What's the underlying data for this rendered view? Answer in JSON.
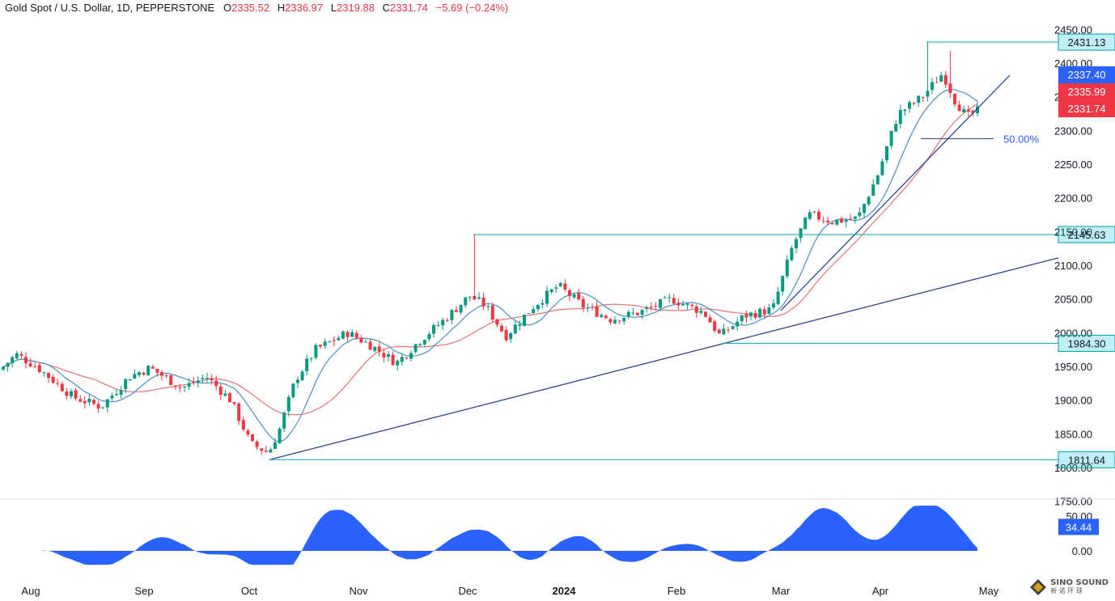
{
  "header": {
    "symbol": "Gold Spot / U.S. Dollar, 1D, PEPPERSTONE",
    "o_label": "O",
    "o_value": "2335.52",
    "h_label": "H",
    "h_value": "2336.97",
    "l_label": "L",
    "l_value": "2319.88",
    "c_label": "C",
    "c_value": "2331.74",
    "change": "−5.69 (−0.24%)"
  },
  "colors": {
    "up": "#089981",
    "down": "#f23645",
    "sma_fast": "#4a90c8",
    "sma_slow": "#e57373",
    "trendline": "#1e3a8a",
    "hline": "#00a0b0",
    "osc": "#2962ff",
    "fib": "#1e3a8a"
  },
  "chart_data": [
    {
      "type": "candlestick",
      "title": "Gold Spot / U.S. Dollar, 1D, PEPPERSTONE",
      "x_ticks": [
        "Aug",
        "Sep",
        "Oct",
        "Nov",
        "Dec",
        "2024",
        "Feb",
        "Mar",
        "Apr",
        "May"
      ],
      "y_ticks": [
        "2450.00",
        "2400.00",
        "2350.00",
        "2300.00",
        "2250.00",
        "2200.00",
        "2150.00",
        "2100.00",
        "2050.00",
        "2000.00",
        "1950.00",
        "1900.00",
        "1850.00",
        "1800.00",
        "1750.00"
      ],
      "ylim": [
        1740,
        2475
      ],
      "ohlc_anchors": [
        {
          "x": 0,
          "c": 1945
        },
        {
          "x": 20,
          "c": 1968
        },
        {
          "x": 45,
          "c": 1950
        },
        {
          "x": 90,
          "c": 1905
        },
        {
          "x": 125,
          "c": 1890
        },
        {
          "x": 160,
          "c": 1935
        },
        {
          "x": 185,
          "c": 1948
        },
        {
          "x": 225,
          "c": 1918
        },
        {
          "x": 255,
          "c": 1935
        },
        {
          "x": 285,
          "c": 1900
        },
        {
          "x": 310,
          "c": 1835
        },
        {
          "x": 332,
          "c": 1822
        },
        {
          "x": 345,
          "c": 1855
        },
        {
          "x": 365,
          "c": 1930
        },
        {
          "x": 390,
          "c": 1975
        },
        {
          "x": 430,
          "c": 2000
        },
        {
          "x": 460,
          "c": 1980
        },
        {
          "x": 490,
          "c": 1955
        },
        {
          "x": 520,
          "c": 1990
        },
        {
          "x": 550,
          "c": 2020
        },
        {
          "x": 580,
          "c": 2055
        },
        {
          "x": 600,
          "c": 2040
        },
        {
          "x": 625,
          "c": 1995
        },
        {
          "x": 660,
          "c": 2040
        },
        {
          "x": 690,
          "c": 2070
        },
        {
          "x": 720,
          "c": 2040
        },
        {
          "x": 755,
          "c": 2020
        },
        {
          "x": 790,
          "c": 2030
        },
        {
          "x": 830,
          "c": 2050
        },
        {
          "x": 870,
          "c": 2030
        },
        {
          "x": 890,
          "c": 1995
        },
        {
          "x": 920,
          "c": 2025
        },
        {
          "x": 955,
          "c": 2035
        },
        {
          "x": 980,
          "c": 2130
        },
        {
          "x": 1000,
          "c": 2175
        },
        {
          "x": 1030,
          "c": 2165
        },
        {
          "x": 1060,
          "c": 2170
        },
        {
          "x": 1085,
          "c": 2235
        },
        {
          "x": 1110,
          "c": 2325
        },
        {
          "x": 1140,
          "c": 2350
        },
        {
          "x": 1165,
          "c": 2385
        },
        {
          "x": 1180,
          "c": 2345
        },
        {
          "x": 1195,
          "c": 2320
        },
        {
          "x": 1212,
          "c": 2332
        }
      ],
      "price_lines": [
        {
          "label": "2431.13",
          "value": 2431.13
        },
        {
          "label": "2145.63",
          "value": 2145.63
        },
        {
          "label": "1984.30",
          "value": 1984.3
        },
        {
          "label": "1811.64",
          "value": 1811.64
        }
      ],
      "price_tags": [
        {
          "label": "2337.40",
          "value": 2337.4,
          "color": "#2962ff"
        },
        {
          "label": "2335.99",
          "value": 2335.99,
          "color": "#f23645"
        },
        {
          "label": "2331.74",
          "value": 2331.74,
          "color": "#f23645"
        }
      ],
      "fib_label": "50.00%",
      "fib_value": 2288
    },
    {
      "type": "area",
      "title": "",
      "y_ticks": [
        "50.00",
        "0.00"
      ],
      "ylim": [
        -20,
        70
      ],
      "last_value": "34.44"
    }
  ],
  "branding": {
    "logo_text_1": "SINO SOUND",
    "logo_text_2": "新 诺 环 球"
  }
}
